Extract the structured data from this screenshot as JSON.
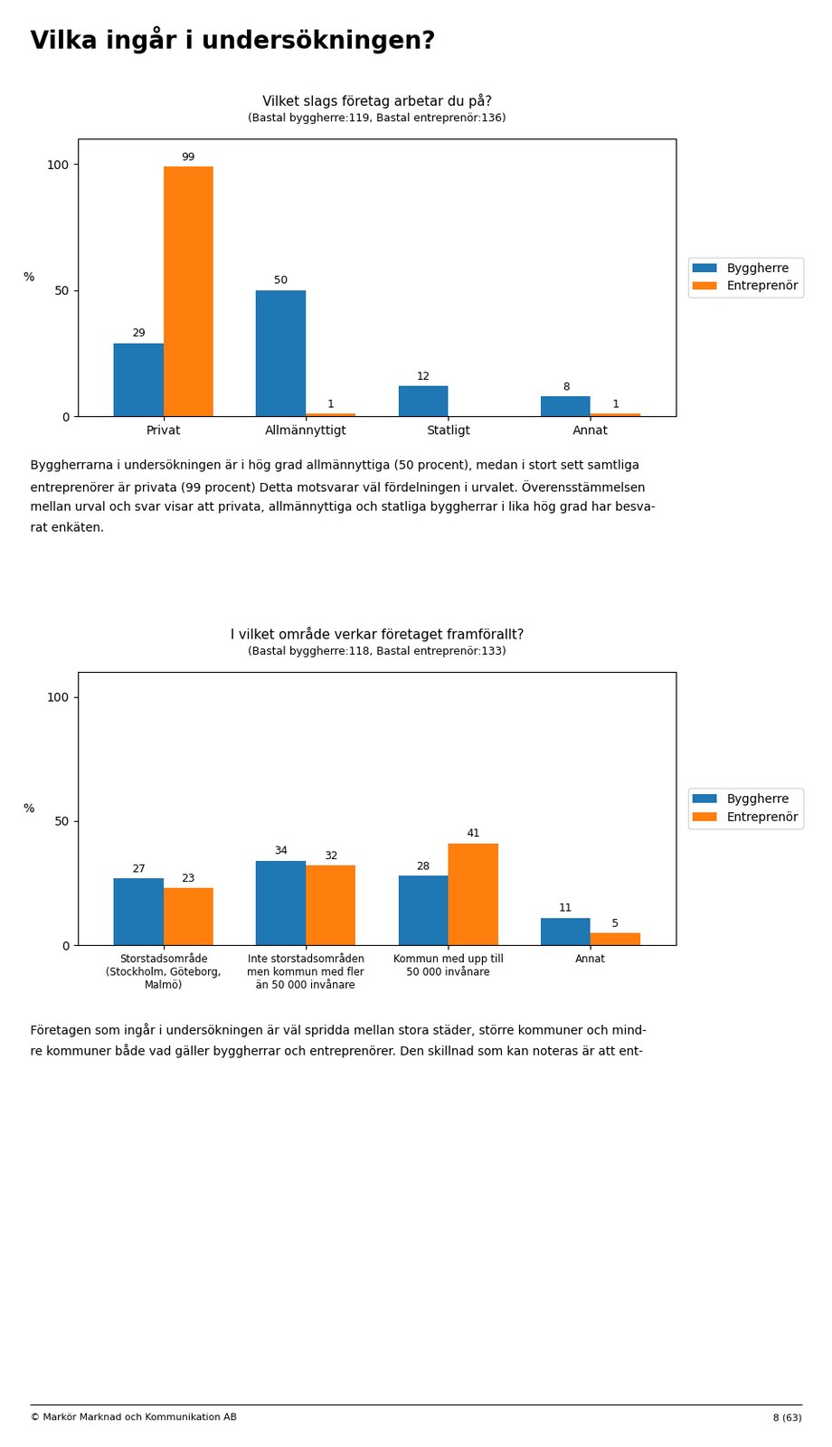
{
  "title": "Vilka ingår i undersökningen?",
  "annotations": [
    "© Markör Marknad och Kommunikation AB",
    "8 (63)"
  ],
  "chart_data": [
    {
      "type": "bar",
      "title": "Vilket slags företag arbetar du på?",
      "subtitle": "(Bastal byggherre:119, Bastal entreprenör:136)",
      "categories": [
        "Privat",
        "Allmännyttigt",
        "Statligt",
        "Annat"
      ],
      "series": [
        {
          "name": "Byggherre",
          "values": [
            29,
            50,
            12,
            8
          ]
        },
        {
          "name": "Entreprenör",
          "values": [
            99,
            1,
            0,
            1
          ],
          "value_labels": [
            "99",
            "1",
            null,
            "1"
          ]
        }
      ],
      "ylim": [
        0,
        110
      ],
      "yticks": [
        0,
        50,
        100
      ],
      "ylabel": "%",
      "legend": "center left",
      "grid": false,
      "data_labels": true,
      "annotations": [
        "Byggherrarna i undersökningen är i hög grad allmännyttiga (50 procent), medan i stort sett samtliga",
        "entreprenörer är privata (99 procent) Detta motsvarar väl fördelningen i urvalet. Överensstämmelsen",
        "mellan urval och svar visar att privata, allmännyttiga och statliga byggherrar i lika hög grad har besva-",
        "rat enkäten."
      ]
    },
    {
      "type": "bar",
      "title": "I vilket område verkar företaget framförallt?",
      "subtitle": "(Bastal byggherre:118, Bastal entreprenör:133)",
      "categories": [
        "Storstadsområde\n(Stockholm, Göteborg,\nMalmö)",
        "Inte storstadsområden\nmen kommun med fler\nän 50 000 invånare",
        "Kommun med upp till\n50 000 invånare",
        "Annat"
      ],
      "series": [
        {
          "name": "Byggherre",
          "values": [
            27,
            34,
            28,
            11
          ]
        },
        {
          "name": "Entreprenör",
          "values": [
            23,
            32,
            41,
            5
          ]
        }
      ],
      "ylim": [
        0,
        110
      ],
      "yticks": [
        0,
        50,
        100
      ],
      "ylabel": "%",
      "legend": "center left",
      "grid": false,
      "data_labels": true,
      "annotations": [
        "Företagen som ingår i undersökningen är väl spridda mellan stora städer, större kommuner och mind-",
        "re kommuner både vad gäller byggherrar och entreprenörer. Den skillnad som kan noteras är att ent-"
      ]
    }
  ]
}
